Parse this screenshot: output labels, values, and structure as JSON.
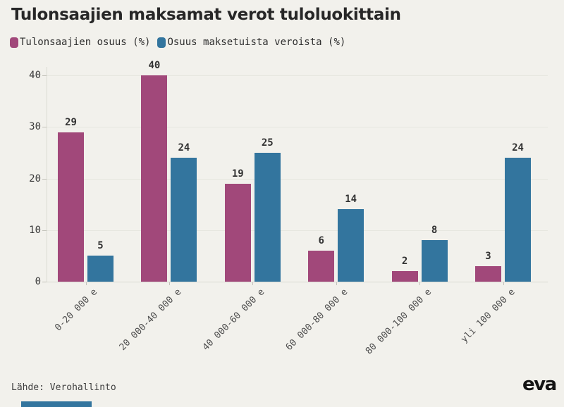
{
  "chart_data": {
    "type": "bar",
    "title": "Tulonsaajien maksamat verot tuloluokittain",
    "categories": [
      "0-20 000 e",
      "20 000-40 000 e",
      "40 000-60 000 e",
      "60 000-80 000 e",
      "80 000-100 000 e",
      "yli 100 000 e"
    ],
    "series": [
      {
        "name": "Tulonsaajien osuus (%)",
        "color": "#A1487A",
        "values": [
          29,
          40,
          19,
          6,
          2,
          3
        ]
      },
      {
        "name": "Osuus maksetuista veroista (%)",
        "color": "#33759E",
        "values": [
          5,
          24,
          25,
          14,
          8,
          24
        ]
      }
    ],
    "ylim": [
      0,
      40
    ],
    "yticks": [
      0,
      10,
      20,
      30,
      40
    ],
    "grid": "horizontal",
    "legend_position": "top-left",
    "bar_value_labels": true,
    "source": "Lähde: Verohallinto"
  },
  "footer": {
    "logo": "eva",
    "accent_color": "#33759E"
  },
  "colors": {
    "background": "#F2F1EC"
  }
}
